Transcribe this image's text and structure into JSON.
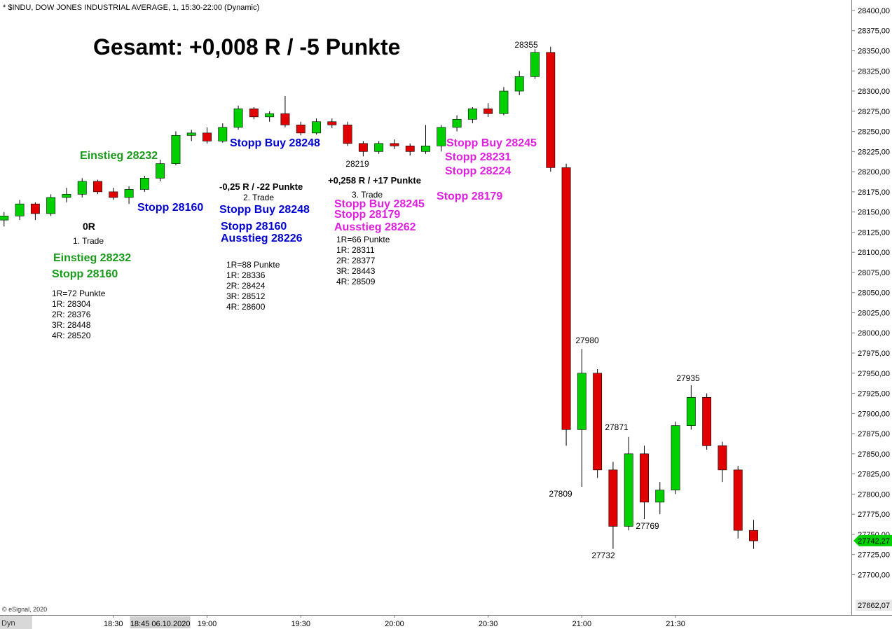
{
  "chart_data": {
    "type": "candlestick",
    "header": "* $INDU, DOW JONES INDUSTRIAL AVERAGE, 1, 15:30-22:00 (Dynamic)",
    "title": "Gesamt: +0,008 R / -5 Punkte",
    "x": [
      1075,
      1080,
      1085,
      1090,
      1095,
      1100,
      1105,
      1110,
      1115,
      1120,
      1125,
      1130,
      1135,
      1140,
      1145,
      1150,
      1155,
      1160,
      1165,
      1170,
      1175,
      1180,
      1185,
      1190,
      1195,
      1200,
      1205,
      1210,
      1215,
      1220,
      1225,
      1230,
      1235,
      1240,
      1245,
      1250,
      1255,
      1260,
      1265,
      1270,
      1275,
      1280,
      1285,
      1290,
      1295,
      1300,
      1305,
      1310,
      1315
    ],
    "open": [
      28140,
      28145,
      28160,
      28148,
      28168,
      28172,
      28188,
      28175,
      28168,
      28178,
      28192,
      28210,
      28245,
      28248,
      28238,
      28255,
      28278,
      28268,
      28272,
      28258,
      28248,
      28262,
      28258,
      28235,
      28225,
      28235,
      28232,
      28225,
      28232,
      28255,
      28265,
      28278,
      28272,
      28300,
      28318,
      28348,
      28205,
      27880,
      27950,
      27830,
      27760,
      27850,
      27790,
      27805,
      27885,
      27920,
      27860,
      27830,
      27755
    ],
    "high": [
      28150,
      28165,
      28162,
      28172,
      28180,
      28192,
      28190,
      28180,
      28182,
      28195,
      28215,
      28250,
      28252,
      28255,
      28260,
      28282,
      28280,
      28275,
      28294,
      28262,
      28266,
      28266,
      28262,
      28238,
      28238,
      28240,
      28235,
      28258,
      28258,
      28270,
      28280,
      28285,
      28305,
      28325,
      28352,
      28355,
      28210,
      27980,
      27955,
      27840,
      27871,
      27860,
      27815,
      27890,
      27935,
      27925,
      27865,
      27835,
      27768
    ],
    "low": [
      28132,
      28140,
      28140,
      28145,
      28162,
      28168,
      28172,
      28165,
      28160,
      28175,
      28188,
      28208,
      28238,
      28235,
      28236,
      28252,
      28265,
      28262,
      28255,
      28245,
      28246,
      28254,
      28232,
      28219,
      28222,
      28228,
      28220,
      28222,
      28225,
      28250,
      28260,
      28268,
      28270,
      28295,
      28315,
      28200,
      27860,
      27809,
      27820,
      27732,
      27755,
      27769,
      27775,
      27800,
      27880,
      27855,
      27815,
      27745,
      27732
    ],
    "close": [
      28145,
      28160,
      28148,
      28168,
      28172,
      28188,
      28175,
      28168,
      28178,
      28192,
      28210,
      28245,
      28248,
      28238,
      28255,
      28278,
      28268,
      28272,
      28258,
      28248,
      28262,
      28258,
      28235,
      28225,
      28235,
      28232,
      28225,
      28232,
      28255,
      28265,
      28278,
      28272,
      28300,
      28318,
      28348,
      28205,
      27880,
      27950,
      27830,
      27760,
      27850,
      27790,
      27805,
      27885,
      27920,
      27860,
      27830,
      27755,
      27742
    ],
    "up_color": "#00d000",
    "down_color": "#e00000",
    "xlim": [
      1073.7,
      1346.3
    ],
    "xticks": [
      {
        "value": 1110,
        "label": "18:30"
      },
      {
        "value": 1140,
        "label": "19:00"
      },
      {
        "value": 1170,
        "label": "19:30"
      },
      {
        "value": 1200,
        "label": "20:00"
      },
      {
        "value": 1230,
        "label": "20:30"
      },
      {
        "value": 1260,
        "label": "21:00"
      },
      {
        "value": 1290,
        "label": "21:30"
      }
    ],
    "cursor_label": {
      "value": 1125,
      "label": "18:45 06.10.2020"
    },
    "ylim": [
      27650,
      28413
    ],
    "yticks": [
      {
        "value": 28400,
        "label": "28400,00"
      },
      {
        "value": 28375,
        "label": "28375,00"
      },
      {
        "value": 28350,
        "label": "28350,00"
      },
      {
        "value": 28325,
        "label": "28325,00"
      },
      {
        "value": 28300,
        "label": "28300,00"
      },
      {
        "value": 28275,
        "label": "28275,00"
      },
      {
        "value": 28250,
        "label": "28250,00"
      },
      {
        "value": 28225,
        "label": "28225,00"
      },
      {
        "value": 28200,
        "label": "28200,00"
      },
      {
        "value": 28175,
        "label": "28175,00"
      },
      {
        "value": 28150,
        "label": "28150,00"
      },
      {
        "value": 28125,
        "label": "28125,00"
      },
      {
        "value": 28100,
        "label": "28100,00"
      },
      {
        "value": 28075,
        "label": "28075,00"
      },
      {
        "value": 28050,
        "label": "28050,00"
      },
      {
        "value": 28025,
        "label": "28025,00"
      },
      {
        "value": 28000,
        "label": "28000,00"
      },
      {
        "value": 27975,
        "label": "27975,00"
      },
      {
        "value": 27950,
        "label": "27950,00"
      },
      {
        "value": 27925,
        "label": "27925,00"
      },
      {
        "value": 27900,
        "label": "27900,00"
      },
      {
        "value": 27875,
        "label": "27875,00"
      },
      {
        "value": 27850,
        "label": "27850,00"
      },
      {
        "value": 27825,
        "label": "27825,00"
      },
      {
        "value": 27800,
        "label": "27800,00"
      },
      {
        "value": 27775,
        "label": "27775,00"
      },
      {
        "value": 27750,
        "label": "27750,00"
      },
      {
        "value": 27725,
        "label": "27725,00"
      },
      {
        "value": 27700,
        "label": "27700,00"
      }
    ],
    "last_price": {
      "value": 27742.27,
      "label": "27742,27"
    },
    "axis_low": {
      "value": 27662.07,
      "label": "27662,07"
    },
    "copyright": "© eSignal, 2020",
    "footer_tag": "Dyn",
    "annotations": [
      {
        "text": "28355",
        "color": "#000000"
      },
      {
        "text": "28219",
        "color": "#000000"
      },
      {
        "text": "27980",
        "color": "#000000"
      },
      {
        "text": "27809",
        "color": "#000000"
      },
      {
        "text": "27871",
        "color": "#000000"
      },
      {
        "text": "27732",
        "color": "#000000"
      },
      {
        "text": "27769",
        "color": "#000000"
      },
      {
        "text": "27935",
        "color": "#000000"
      },
      {
        "text": "Einstieg 28232",
        "color": "#1a9a1a"
      },
      {
        "text": "Stopp 28160",
        "color": "#0000d0"
      },
      {
        "text": "0R",
        "color": "#000000"
      },
      {
        "text": "1. Trade",
        "color": "#000000"
      },
      {
        "text": "Einstieg 28232",
        "color": "#1a9a1a"
      },
      {
        "text": "Stopp 28160",
        "color": "#1a9a1a"
      },
      {
        "text": "1R=72 Punkte",
        "color": "#000000"
      },
      {
        "text": "1R: 28304",
        "color": "#000000"
      },
      {
        "text": "2R: 28376",
        "color": "#000000"
      },
      {
        "text": "3R: 28448",
        "color": "#000000"
      },
      {
        "text": "4R: 28520",
        "color": "#000000"
      },
      {
        "text": "Stopp Buy 28248",
        "color": "#0000d0"
      },
      {
        "text": "-0,25 R / -22 Punkte",
        "color": "#000000"
      },
      {
        "text": "2. Trade",
        "color": "#000000"
      },
      {
        "text": "Stopp Buy 28248",
        "color": "#0000d0"
      },
      {
        "text": "Stopp 28160",
        "color": "#0000d0"
      },
      {
        "text": "Ausstieg 28226",
        "color": "#0000d0"
      },
      {
        "text": "1R=88 Punkte",
        "color": "#000000"
      },
      {
        "text": "1R: 28336",
        "color": "#000000"
      },
      {
        "text": "2R: 28424",
        "color": "#000000"
      },
      {
        "text": "3R: 28512",
        "color": "#000000"
      },
      {
        "text": "4R: 28600",
        "color": "#000000"
      },
      {
        "text": "+0,258 R / +17 Punkte",
        "color": "#000000"
      },
      {
        "text": "3. Trade",
        "color": "#000000"
      },
      {
        "text": "Stopp Buy 28245",
        "color": "#e020e0"
      },
      {
        "text": "Stopp 28179",
        "color": "#e020e0"
      },
      {
        "text": "Ausstieg 28262",
        "color": "#e020e0"
      },
      {
        "text": "1R=66 Punkte",
        "color": "#000000"
      },
      {
        "text": "1R: 28311",
        "color": "#000000"
      },
      {
        "text": "2R: 28377",
        "color": "#000000"
      },
      {
        "text": "3R: 28443",
        "color": "#000000"
      },
      {
        "text": "4R: 28509",
        "color": "#000000"
      },
      {
        "text": "Stopp Buy 28245",
        "color": "#e020e0"
      },
      {
        "text": "Stopp 28231",
        "color": "#e020e0"
      },
      {
        "text": "Stopp 28224",
        "color": "#e020e0"
      },
      {
        "text": "Stopp 28179",
        "color": "#e020e0"
      }
    ]
  }
}
